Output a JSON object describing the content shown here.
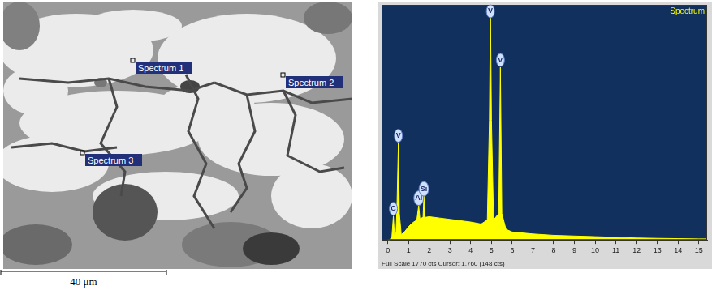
{
  "chart_data": {
    "type": "line",
    "title": "Spectrum",
    "color": "#ffff00",
    "x": [
      0,
      0.1,
      0.2,
      0.27,
      0.32,
      0.4,
      0.45,
      0.51,
      0.56,
      0.65,
      0.8,
      1.0,
      1.2,
      1.4,
      1.49,
      1.55,
      1.7,
      1.74,
      1.8,
      2.0,
      2.5,
      3.0,
      3.5,
      4.0,
      4.5,
      4.8,
      4.9,
      4.95,
      5.0,
      5.1,
      5.35,
      5.43,
      5.5,
      5.7,
      6.0,
      7.0,
      8.0,
      9.0,
      10.0,
      11.0,
      12.0,
      13.0,
      14.0,
      15.0,
      15.4
    ],
    "values": [
      0,
      0,
      30,
      180,
      40,
      60,
      300,
      730,
      200,
      40,
      60,
      100,
      130,
      150,
      260,
      160,
      170,
      330,
      170,
      175,
      165,
      155,
      145,
      135,
      120,
      150,
      900,
      1770,
      900,
      150,
      200,
      1300,
      200,
      80,
      60,
      45,
      35,
      30,
      25,
      20,
      15,
      12,
      10,
      8,
      8
    ],
    "xlim": [
      -0.3,
      15.4
    ],
    "xticks": [
      0,
      1,
      2,
      3,
      4,
      5,
      6,
      7,
      8,
      9,
      10,
      11,
      12,
      13,
      14,
      15
    ],
    "ylim": [
      0,
      1770
    ],
    "tick_labels": "x",
    "grid": false,
    "peak_labels": [
      {
        "label": "C",
        "x": 0.27
      },
      {
        "label": "V",
        "x": 0.51
      },
      {
        "label": "Al",
        "x": 1.49
      },
      {
        "label": "Si",
        "x": 1.74
      },
      {
        "label": "V",
        "x": 4.95
      },
      {
        "label": "V",
        "x": 5.43
      }
    ],
    "footer": "Full Scale 1770 cts Cursor: 1.760 (148 cts)"
  },
  "micrograph": {
    "spectrum_labels": [
      "Spectrum 1",
      "Spectrum 2",
      "Spectrum 3"
    ],
    "scale_bar": "40 μm"
  }
}
